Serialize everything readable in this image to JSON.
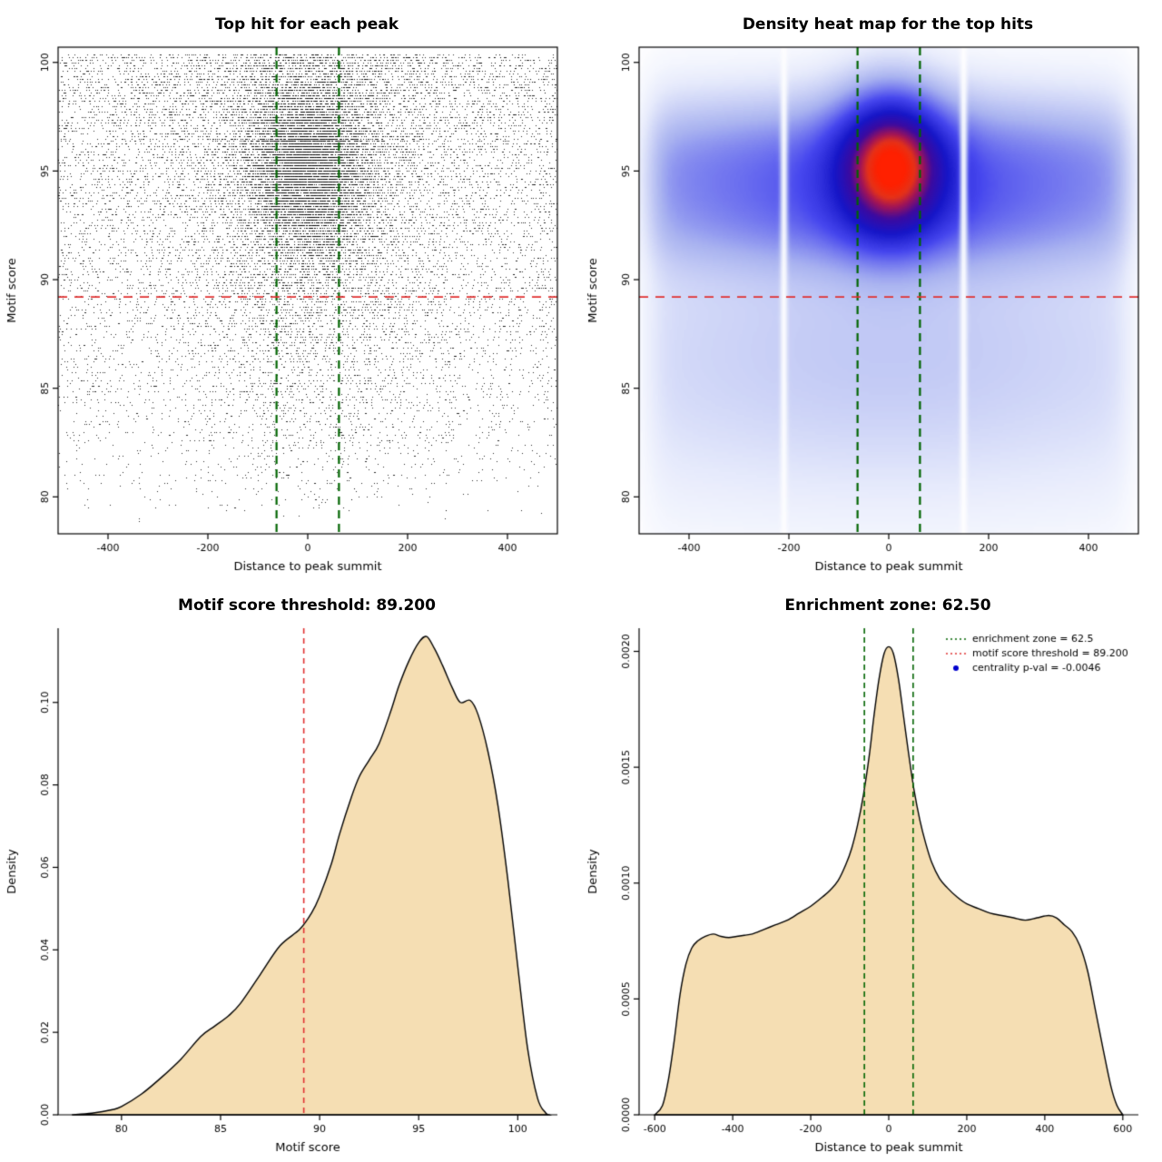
{
  "page": {
    "background": "#ffffff"
  },
  "colors": {
    "scatter_point": "#000000",
    "enrichment_line": "#006400",
    "threshold_line": "#e03131",
    "density_fill": "#f5deb3",
    "density_stroke": "#000000",
    "legend_dot": "#0000cd"
  },
  "chart_data": [
    {
      "type": "scatter",
      "title": "Top hit for each peak",
      "xlabel": "Distance to peak summit",
      "ylabel": "Motif score",
      "xlim": [
        -500,
        500
      ],
      "ylim": [
        78.3,
        100.7
      ],
      "xticks": [
        -400,
        -200,
        0,
        200,
        400
      ],
      "yticks": [
        80,
        85,
        90,
        95,
        100
      ],
      "enrichment_zone_x": [
        -62.5,
        62.5
      ],
      "score_threshold_y": 89.2,
      "point_color": "#000000",
      "distribution": {
        "n_points": 23000,
        "center_frac": 0.33,
        "center_x_sd": 62,
        "center_y_mean": 95.2,
        "center_y_sd": 2.1,
        "bg_uniform_frac": 0.62,
        "bg_x_sd": 150,
        "y_min": 78.8,
        "y_span": 21.6,
        "y_pow": 0.5,
        "score_quantum": 0.125,
        "seed": 42
      }
    },
    {
      "type": "heatmap",
      "title": "Density heat map for the top hits",
      "xlabel": "Distance to peak summit",
      "ylabel": "Motif score",
      "xlim": [
        -500,
        500
      ],
      "ylim": [
        78.3,
        100.7
      ],
      "xticks": [
        -400,
        -200,
        0,
        200,
        400
      ],
      "yticks": [
        80,
        85,
        90,
        95,
        100
      ],
      "enrichment_zone_x": [
        -62.5,
        62.5
      ],
      "score_threshold_y": 89.2,
      "density_model": {
        "bands": [
          {
            "y": 95.4,
            "ysd": 2.3,
            "amp": 0.75,
            "xsd": 320,
            "xbase": 0.55
          },
          {
            "y": 92.3,
            "ysd": 1.5,
            "amp": 0.3,
            "xsd": 260,
            "xbase": 0.45
          },
          {
            "y": 88.0,
            "ysd": 4.5,
            "amp": 0.3,
            "xsd": 300,
            "xbase": 0.55
          },
          {
            "y": 83.0,
            "ysd": 4.0,
            "amp": 0.12,
            "xsd": 400,
            "xbase": 0.7
          }
        ],
        "blob": {
          "x": 5,
          "y": 95.4,
          "xsd": 75,
          "ysd": 2.4,
          "amp": 1.2
        },
        "max": 2.0,
        "edge_fade_x": 480,
        "edge_fade_w": 18,
        "streaks": [
          {
            "x": -210,
            "sd": 5
          },
          {
            "x": 150,
            "sd": 5
          }
        ],
        "colormap": {
          "positions": [
            0,
            0.08,
            0.25,
            0.45,
            0.62,
            0.76,
            0.86,
            0.93,
            1
          ],
          "colors": [
            "#ffffff",
            "#e8ecfc",
            "#a8b2f0",
            "#4646ee",
            "#1616c8",
            "#3c0aa0",
            "#a01458",
            "#e63218",
            "#ff2000"
          ]
        }
      }
    },
    {
      "type": "density",
      "title": "Motif score threshold: 89.200",
      "xlabel": "Motif score",
      "ylabel": "Density",
      "xlim": [
        76.8,
        102
      ],
      "ylim": [
        0,
        0.118
      ],
      "xticks": [
        80,
        85,
        90,
        95,
        100
      ],
      "yticks": [
        0,
        0.02,
        0.04,
        0.06,
        0.08,
        0.1
      ],
      "ytick_labels": [
        "0.00",
        "0.02",
        "0.04",
        "0.06",
        "0.08",
        "0.10"
      ],
      "fill": "#f5deb3",
      "vlines": [
        {
          "x": 89.2,
          "color": "#e03131",
          "dash": [
            6,
            5
          ],
          "width": 1.6
        }
      ],
      "curve": [
        [
          77.5,
          0
        ],
        [
          78.5,
          0.0004
        ],
        [
          79.5,
          0.0012
        ],
        [
          80,
          0.002
        ],
        [
          81,
          0.005
        ],
        [
          82,
          0.009
        ],
        [
          83,
          0.0135
        ],
        [
          84,
          0.019
        ],
        [
          84.7,
          0.0215
        ],
        [
          85.4,
          0.024
        ],
        [
          86,
          0.027
        ],
        [
          87,
          0.034
        ],
        [
          88,
          0.041
        ],
        [
          89,
          0.045
        ],
        [
          89.6,
          0.049
        ],
        [
          90,
          0.053
        ],
        [
          90.6,
          0.061
        ],
        [
          91,
          0.068
        ],
        [
          91.6,
          0.077
        ],
        [
          92,
          0.082
        ],
        [
          92.5,
          0.086
        ],
        [
          93,
          0.09
        ],
        [
          93.6,
          0.098
        ],
        [
          94,
          0.104
        ],
        [
          94.5,
          0.11
        ],
        [
          95,
          0.1145
        ],
        [
          95.4,
          0.116
        ],
        [
          95.8,
          0.113
        ],
        [
          96.2,
          0.109
        ],
        [
          96.7,
          0.1035
        ],
        [
          97.1,
          0.1
        ],
        [
          97.6,
          0.1005
        ],
        [
          98,
          0.097
        ],
        [
          98.5,
          0.088
        ],
        [
          99,
          0.075
        ],
        [
          99.5,
          0.057
        ],
        [
          100,
          0.036
        ],
        [
          100.5,
          0.016
        ],
        [
          101,
          0.004
        ],
        [
          101.4,
          0.0005
        ],
        [
          101.6,
          0
        ]
      ]
    },
    {
      "type": "density",
      "title": "Enrichment zone: 62.50",
      "xlabel": "Distance to peak summit",
      "ylabel": "Density",
      "xlim": [
        -640,
        640
      ],
      "ylim": [
        0,
        0.0021
      ],
      "xticks": [
        -600,
        -400,
        -200,
        0,
        200,
        400,
        600
      ],
      "yticks": [
        0,
        0.0005,
        0.001,
        0.0015,
        0.002
      ],
      "ytick_labels": [
        "0.0000",
        "0.0005",
        "0.0010",
        "0.0015",
        "0.0020"
      ],
      "fill": "#f5deb3",
      "vlines": [
        {
          "x": -62.5,
          "color": "#006400",
          "dash": [
            6,
            4
          ],
          "width": 1.6
        },
        {
          "x": 62.5,
          "color": "#006400",
          "dash": [
            6,
            4
          ],
          "width": 1.6
        }
      ],
      "legend": [
        {
          "label": "enrichment zone = 62.5",
          "color": "#006400",
          "style": "dotted-line"
        },
        {
          "label": "motif score threshold = 89.200",
          "color": "#e03131",
          "style": "dotted-line"
        },
        {
          "label": "centrality p-val = -0.0046",
          "color": "#0000cd",
          "style": "dot"
        }
      ],
      "curve": [
        [
          -600,
          0
        ],
        [
          -580,
          4e-05
        ],
        [
          -565,
          0.00015
        ],
        [
          -550,
          0.00032
        ],
        [
          -535,
          0.00052
        ],
        [
          -520,
          0.00065
        ],
        [
          -505,
          0.00072
        ],
        [
          -490,
          0.00075
        ],
        [
          -470,
          0.00077
        ],
        [
          -450,
          0.00078
        ],
        [
          -430,
          0.00077
        ],
        [
          -410,
          0.000765
        ],
        [
          -390,
          0.00077
        ],
        [
          -370,
          0.000775
        ],
        [
          -350,
          0.00078
        ],
        [
          -320,
          0.0008
        ],
        [
          -290,
          0.00082
        ],
        [
          -260,
          0.00084
        ],
        [
          -230,
          0.00087
        ],
        [
          -200,
          0.0009
        ],
        [
          -170,
          0.00094
        ],
        [
          -150,
          0.00097
        ],
        [
          -130,
          0.00101
        ],
        [
          -110,
          0.00108
        ],
        [
          -95,
          0.00115
        ],
        [
          -80,
          0.00125
        ],
        [
          -65,
          0.00138
        ],
        [
          -50,
          0.00155
        ],
        [
          -38,
          0.00172
        ],
        [
          -25,
          0.00188
        ],
        [
          -12,
          0.00199
        ],
        [
          0,
          0.00202
        ],
        [
          12,
          0.00199
        ],
        [
          25,
          0.00188
        ],
        [
          38,
          0.00172
        ],
        [
          50,
          0.00157
        ],
        [
          65,
          0.0014
        ],
        [
          80,
          0.00127
        ],
        [
          95,
          0.00117
        ],
        [
          110,
          0.00109
        ],
        [
          130,
          0.00102
        ],
        [
          150,
          0.00098
        ],
        [
          175,
          0.00094
        ],
        [
          200,
          0.00091
        ],
        [
          230,
          0.00089
        ],
        [
          260,
          0.00087
        ],
        [
          290,
          0.00086
        ],
        [
          320,
          0.00085
        ],
        [
          350,
          0.00084
        ],
        [
          380,
          0.00085
        ],
        [
          410,
          0.00086
        ],
        [
          430,
          0.00085
        ],
        [
          450,
          0.00082
        ],
        [
          470,
          0.00079
        ],
        [
          490,
          0.00073
        ],
        [
          510,
          0.00062
        ],
        [
          530,
          0.00045
        ],
        [
          550,
          0.00028
        ],
        [
          570,
          0.00012
        ],
        [
          585,
          4e-05
        ],
        [
          600,
          0
        ]
      ]
    }
  ]
}
